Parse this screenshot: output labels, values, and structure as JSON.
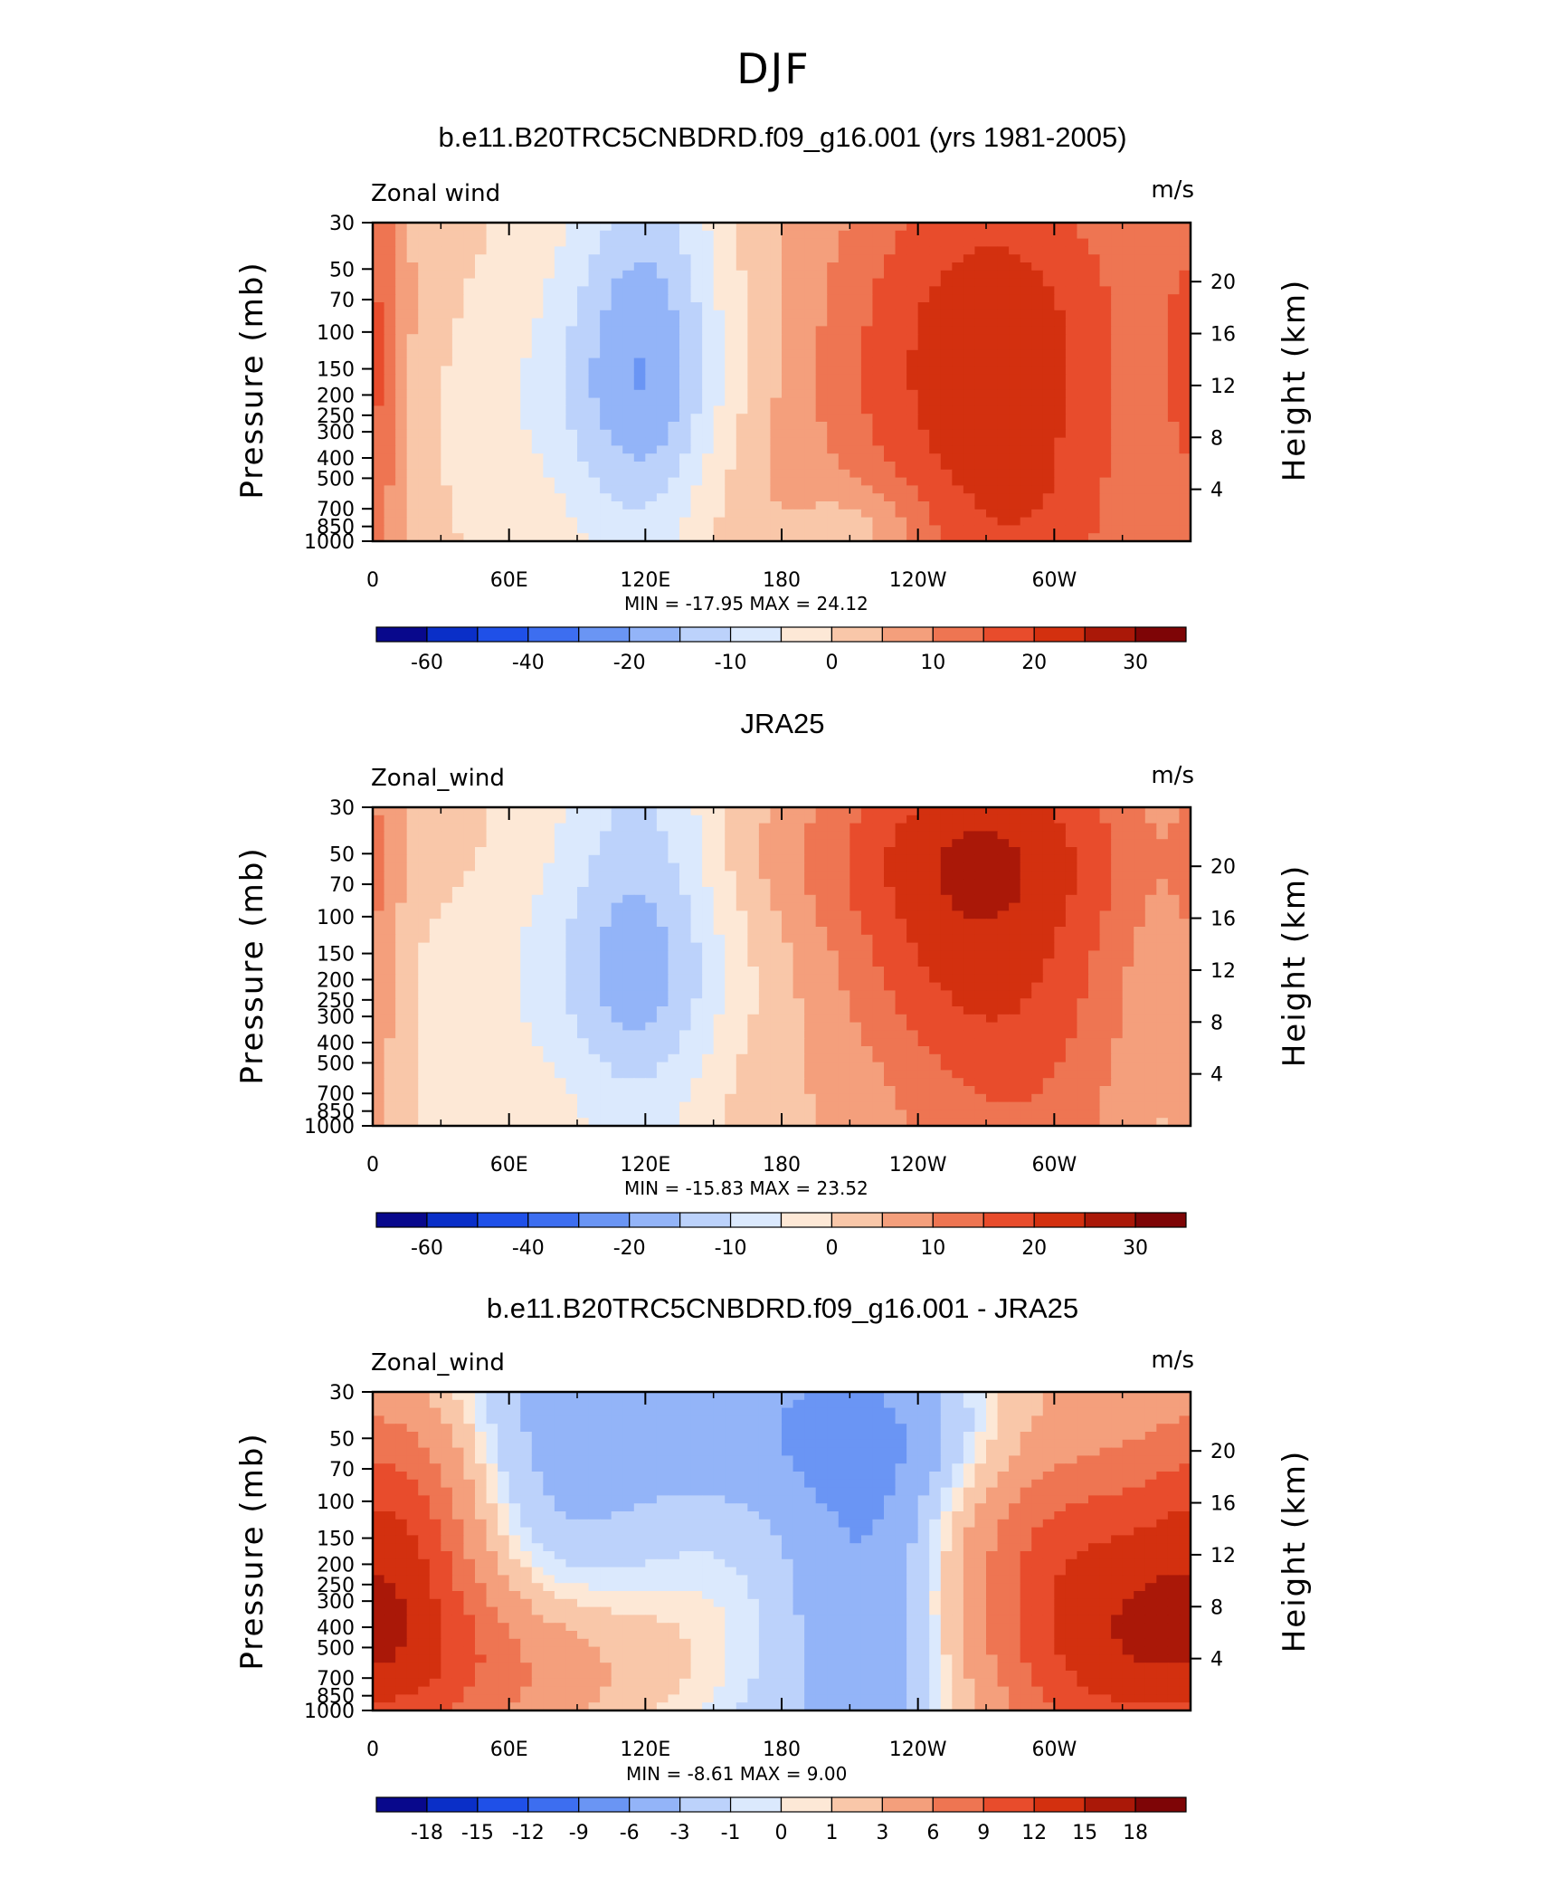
{
  "figure_title": "DJF",
  "chart_data": [
    {
      "type": "heatmap",
      "title": "b.e11.B20TRC5CNBDRD.f09_g16.001 (yrs 1981-2005)",
      "variable_label": "Zonal wind",
      "units": "m/s",
      "ylabel": "Pressure (mb)",
      "ylabel_right": "Height (km)",
      "x_ticks": [
        "0",
        "60E",
        "120E",
        "180",
        "120W",
        "60W"
      ],
      "y_ticks": [
        "30",
        "50",
        "70",
        "100",
        "150",
        "200",
        "250",
        "300",
        "400",
        "500",
        "700",
        "850",
        "1000"
      ],
      "y_ticks_right": [
        "20",
        "16",
        "12",
        "8",
        "4"
      ],
      "xlim": [
        0,
        360
      ],
      "ylim": [
        1000,
        30
      ],
      "y_scale": "log",
      "stats_label": "MIN =  -17.95   MAX =   24.12",
      "min": -17.95,
      "max": 24.12,
      "colorbar_labels": [
        "-60",
        "-40",
        "-20",
        "-10",
        "0",
        "10",
        "20",
        "30"
      ],
      "levels": [
        -70,
        -60,
        -50,
        -40,
        -30,
        -20,
        -15,
        -10,
        -5,
        0,
        5,
        10,
        15,
        20,
        25,
        30,
        35
      ],
      "colors": [
        "#08088c",
        "#0a2fc8",
        "#1f50e8",
        "#3d6ef0",
        "#6a95f4",
        "#93b4f8",
        "#bcd2fb",
        "#dbe9fd",
        "#fde8d6",
        "#f9c7a9",
        "#f49f7c",
        "#ee7552",
        "#e84c2c",
        "#d3300f",
        "#aa1808",
        "#7e0506"
      ],
      "features": [
        {
          "lon": 272,
          "p": 150,
          "rx": 58,
          "ry": 0.22,
          "amp": 24
        },
        {
          "lon": 120,
          "p": 155,
          "rx": 24,
          "ry": 0.18,
          "amp": -18
        },
        {
          "lon": 0,
          "p": 150,
          "rx": 10,
          "ry": 0.2,
          "amp": 10
        },
        {
          "lon": 125,
          "p": 720,
          "rx": 40,
          "ry": 0.07,
          "amp": 5
        },
        {
          "lon": 300,
          "p": 900,
          "rx": 30,
          "ry": 0.05,
          "amp": 3
        },
        {
          "lon": 215,
          "p": 850,
          "rx": 20,
          "ry": 0.04,
          "amp": -7
        },
        {
          "lon": 80,
          "p": 270,
          "rx": 50,
          "ry": 0.12,
          "amp": -5
        }
      ]
    },
    {
      "type": "heatmap",
      "title": "JRA25",
      "variable_label": "Zonal_wind",
      "units": "m/s",
      "ylabel": "Pressure (mb)",
      "ylabel_right": "Height (km)",
      "x_ticks": [
        "0",
        "60E",
        "120E",
        "180",
        "120W",
        "60W"
      ],
      "y_ticks": [
        "30",
        "50",
        "70",
        "100",
        "150",
        "200",
        "250",
        "300",
        "400",
        "500",
        "700",
        "850",
        "1000"
      ],
      "y_ticks_right": [
        "20",
        "16",
        "12",
        "8",
        "4"
      ],
      "xlim": [
        0,
        360
      ],
      "ylim": [
        1000,
        30
      ],
      "y_scale": "log",
      "stats_label": "MIN =  -15.83   MAX =   23.52",
      "min": -15.83,
      "max": 23.52,
      "colorbar_labels": [
        "-60",
        "-40",
        "-20",
        "-10",
        "0",
        "10",
        "20",
        "30"
      ],
      "levels": [
        -70,
        -60,
        -50,
        -40,
        -30,
        -20,
        -15,
        -10,
        -5,
        0,
        5,
        10,
        15,
        20,
        25,
        30,
        35
      ],
      "colors": [
        "#08088c",
        "#0a2fc8",
        "#1f50e8",
        "#3d6ef0",
        "#6a95f4",
        "#93b4f8",
        "#bcd2fb",
        "#dbe9fd",
        "#fde8d6",
        "#f9c7a9",
        "#f49f7c",
        "#ee7552",
        "#e84c2c",
        "#d3300f",
        "#aa1808",
        "#7e0506"
      ],
      "features": [
        {
          "lon": 270,
          "p": 150,
          "rx": 52,
          "ry": 0.26,
          "amp": 23.5
        },
        {
          "lon": 118,
          "p": 150,
          "rx": 26,
          "ry": 0.2,
          "amp": -15.8
        },
        {
          "lon": 2,
          "p": 120,
          "rx": 8,
          "ry": 0.2,
          "amp": 6
        },
        {
          "lon": 120,
          "p": 760,
          "rx": 45,
          "ry": 0.06,
          "amp": 5
        },
        {
          "lon": 250,
          "p": 50,
          "rx": 110,
          "ry": 0.06,
          "amp": 5
        },
        {
          "lon": 245,
          "p": 720,
          "rx": 40,
          "ry": 0.08,
          "amp": -5
        },
        {
          "lon": 60,
          "p": 250,
          "rx": 70,
          "ry": 0.15,
          "amp": -4
        }
      ]
    },
    {
      "type": "heatmap",
      "title": "b.e11.B20TRC5CNBDRD.f09_g16.001 - JRA25",
      "variable_label": "Zonal_wind",
      "units": "m/s",
      "ylabel": "Pressure (mb)",
      "ylabel_right": "Height (km)",
      "x_ticks": [
        "0",
        "60E",
        "120E",
        "180",
        "120W",
        "60W"
      ],
      "y_ticks": [
        "30",
        "50",
        "70",
        "100",
        "150",
        "200",
        "250",
        "300",
        "400",
        "500",
        "700",
        "850",
        "1000"
      ],
      "y_ticks_right": [
        "20",
        "16",
        "12",
        "8",
        "4"
      ],
      "xlim": [
        0,
        360
      ],
      "ylim": [
        1000,
        30
      ],
      "y_scale": "log",
      "stats_label": "MIN =   -8.61   MAX =    9.00",
      "min": -8.61,
      "max": 9.0,
      "colorbar_labels": [
        "-18",
        "-15",
        "-12",
        "-9",
        "-6",
        "-3",
        "-1",
        "0",
        "1",
        "3",
        "6",
        "9",
        "12",
        "15",
        "18"
      ],
      "levels": [
        -21,
        -18,
        -15,
        -12,
        -9,
        -6,
        -3,
        -1,
        0,
        1,
        3,
        6,
        9,
        12,
        15,
        18,
        21
      ],
      "colors": [
        "#08088c",
        "#0a2fc8",
        "#1f50e8",
        "#3d6ef0",
        "#6a95f4",
        "#93b4f8",
        "#bcd2fb",
        "#dbe9fd",
        "#fde8d6",
        "#f9c7a9",
        "#f49f7c",
        "#ee7552",
        "#e84c2c",
        "#d3300f",
        "#aa1808",
        "#7e0506"
      ],
      "base": -4.5,
      "features": [
        {
          "lon": 305,
          "p": 140,
          "rx": 45,
          "ry": 0.2,
          "amp": 13
        },
        {
          "lon": 15,
          "p": 130,
          "rx": 28,
          "ry": 0.14,
          "amp": 11
        },
        {
          "lon": 60,
          "p": 700,
          "rx": 50,
          "ry": 0.08,
          "amp": 9
        },
        {
          "lon": 250,
          "p": 50,
          "rx": 85,
          "ry": 0.06,
          "amp": -3.5
        },
        {
          "lon": 220,
          "p": 210,
          "rx": 22,
          "ry": 0.12,
          "amp": -3.5
        },
        {
          "lon": 150,
          "p": 320,
          "rx": 35,
          "ry": 0.14,
          "amp": 3.5
        },
        {
          "lon": 330,
          "p": 600,
          "rx": 40,
          "ry": 0.1,
          "amp": 7
        }
      ]
    }
  ]
}
